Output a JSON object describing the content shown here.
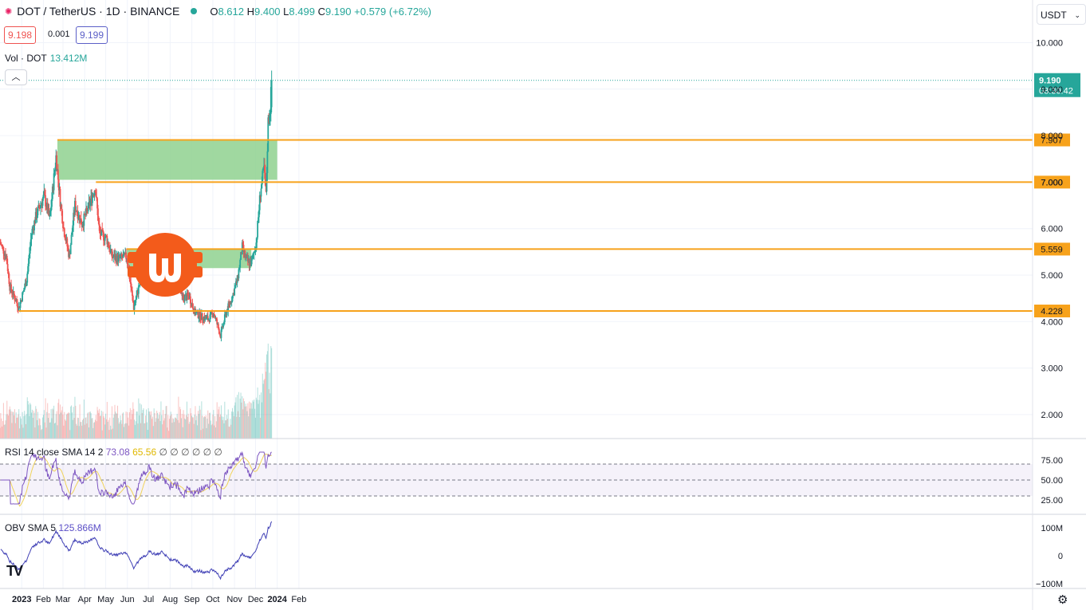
{
  "header": {
    "symbol": "DOT / TetherUS · 1D · BINANCE",
    "o_label": "O",
    "o_value": "8.612",
    "h_label": "H",
    "h_value": "9.400",
    "l_label": "L",
    "l_value": "8.499",
    "c_label": "C",
    "c_value": "9.190",
    "change": "+0.579 (+6.72%)",
    "sell_price": "9.198",
    "spread": "0.001",
    "buy_price": "9.199"
  },
  "volume": {
    "label": "Vol · DOT",
    "value": "13.412M"
  },
  "currency_selector": "USDT",
  "price_axis": {
    "ticks": [
      "10.000",
      "9.000",
      "8.000",
      "7.000",
      "6.000",
      "5.000",
      "4.000",
      "3.000",
      "2.000"
    ]
  },
  "current_price": {
    "value": "9.190",
    "countdown": "08:30:42"
  },
  "levels": [
    {
      "value": 7.907,
      "label": "7.907"
    },
    {
      "value": 7.0,
      "label": "7.000"
    },
    {
      "value": 5.559,
      "label": "5.559"
    },
    {
      "value": 4.228,
      "label": "4.228"
    }
  ],
  "time_axis": [
    "2023",
    "Feb",
    "Mar",
    "Apr",
    "May",
    "Jun",
    "Jul",
    "Aug",
    "Sep",
    "Oct",
    "Nov",
    "Dec",
    "2024",
    "Feb"
  ],
  "rsi": {
    "label": "RSI 14 close SMA 14 2",
    "value": "73.08",
    "sma_value": "65.56",
    "extras": "∅ ∅ ∅ ∅ ∅ ∅",
    "ticks": [
      "75.00",
      "50.00",
      "25.00"
    ]
  },
  "obv": {
    "label": "OBV SMA 5",
    "value": "125.866M",
    "ticks": [
      "100M",
      "0",
      "−100M"
    ]
  },
  "colors": {
    "up": "#26a69a",
    "down": "#ef5350",
    "level": "#f7a21b",
    "zone": "#8fd18f",
    "rsi": "#7e57c2",
    "rsi_sma": "#f0d35a"
  },
  "chart_data": {
    "type": "candlestick",
    "title": "DOT / TetherUS · 1D · BINANCE",
    "price_range": [
      1.6,
      10.6
    ],
    "zones": [
      {
        "from": "2023-02-21",
        "to": "2024-01-01",
        "low": 7.05,
        "high": 7.907
      },
      {
        "from": "2023-05-31",
        "to": "2023-11-25",
        "low": 5.15,
        "high": 5.559
      }
    ],
    "keypoints": [
      {
        "date": "2022-12-01",
        "close": 5.7
      },
      {
        "date": "2022-12-10",
        "close": 5.4
      },
      {
        "date": "2022-12-15",
        "close": 4.75
      },
      {
        "date": "2022-12-28",
        "close": 4.3
      },
      {
        "date": "2023-01-08",
        "close": 4.9
      },
      {
        "date": "2023-01-15",
        "close": 5.9
      },
      {
        "date": "2023-01-22",
        "close": 6.3
      },
      {
        "date": "2023-02-02",
        "close": 6.7
      },
      {
        "date": "2023-02-10",
        "close": 6.2
      },
      {
        "date": "2023-02-19",
        "close": 7.55
      },
      {
        "date": "2023-02-25",
        "close": 6.6
      },
      {
        "date": "2023-03-02",
        "close": 6.0
      },
      {
        "date": "2023-03-10",
        "close": 5.4
      },
      {
        "date": "2023-03-18",
        "close": 6.5
      },
      {
        "date": "2023-03-28",
        "close": 6.1
      },
      {
        "date": "2023-04-05",
        "close": 6.4
      },
      {
        "date": "2023-04-16",
        "close": 6.9
      },
      {
        "date": "2023-04-22",
        "close": 5.9
      },
      {
        "date": "2023-05-02",
        "close": 5.8
      },
      {
        "date": "2023-05-10",
        "close": 5.4
      },
      {
        "date": "2023-05-20",
        "close": 5.35
      },
      {
        "date": "2023-05-31",
        "close": 5.4
      },
      {
        "date": "2023-06-10",
        "close": 4.3
      },
      {
        "date": "2023-06-15",
        "close": 4.6
      },
      {
        "date": "2023-06-22",
        "close": 5.05
      },
      {
        "date": "2023-07-02",
        "close": 5.4
      },
      {
        "date": "2023-07-12",
        "close": 5.2
      },
      {
        "date": "2023-07-20",
        "close": 5.35
      },
      {
        "date": "2023-08-01",
        "close": 5.05
      },
      {
        "date": "2023-08-12",
        "close": 4.95
      },
      {
        "date": "2023-08-18",
        "close": 4.5
      },
      {
        "date": "2023-08-28",
        "close": 4.55
      },
      {
        "date": "2023-09-05",
        "close": 4.2
      },
      {
        "date": "2023-09-15",
        "close": 4.1
      },
      {
        "date": "2023-09-25",
        "close": 4.05
      },
      {
        "date": "2023-10-02",
        "close": 4.2
      },
      {
        "date": "2023-10-12",
        "close": 3.7
      },
      {
        "date": "2023-10-20",
        "close": 4.2
      },
      {
        "date": "2023-10-28",
        "close": 4.5
      },
      {
        "date": "2023-11-05",
        "close": 4.9
      },
      {
        "date": "2023-11-12",
        "close": 5.6
      },
      {
        "date": "2023-11-18",
        "close": 5.3
      },
      {
        "date": "2023-11-25",
        "close": 5.25
      },
      {
        "date": "2023-12-02",
        "close": 5.7
      },
      {
        "date": "2023-12-08",
        "close": 6.8
      },
      {
        "date": "2023-12-13",
        "close": 7.3
      },
      {
        "date": "2023-12-16",
        "close": 6.7
      },
      {
        "date": "2023-12-19",
        "close": 8.3
      },
      {
        "date": "2023-12-22",
        "close": 8.6
      },
      {
        "date": "2023-12-24",
        "close": 9.19
      }
    ],
    "last": {
      "open": 8.612,
      "high": 9.4,
      "low": 8.499,
      "close": 9.19
    }
  }
}
